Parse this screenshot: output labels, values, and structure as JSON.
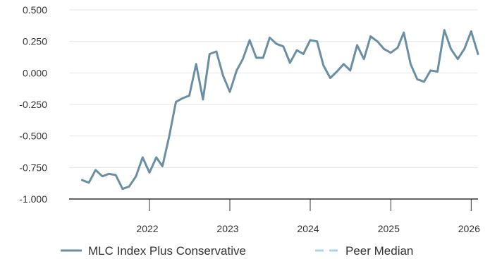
{
  "chart_data": {
    "type": "line",
    "title": "",
    "xlabel": "",
    "ylabel": "",
    "ylim": [
      -1.0,
      0.5
    ],
    "y_ticks": [
      "0.500",
      "0.250",
      "0.000",
      "-0.250",
      "-0.500",
      "-0.750",
      "-1.000"
    ],
    "x_ticks": [
      "2022",
      "2023",
      "2024",
      "2025",
      "2026"
    ],
    "grid": "horizontal",
    "legend_placement": "bottom",
    "series": [
      {
        "name": "MLC Index Plus Conservative",
        "color": "#6a8fa3",
        "style": "solid",
        "x": [
          "2021-03",
          "2021-04",
          "2021-05",
          "2021-06",
          "2021-07",
          "2021-08",
          "2021-09",
          "2021-10",
          "2021-11",
          "2021-12",
          "2022-01",
          "2022-02",
          "2022-03",
          "2022-04",
          "2022-05",
          "2022-06",
          "2022-07",
          "2022-08",
          "2022-09",
          "2022-10",
          "2022-11",
          "2022-12",
          "2023-01",
          "2023-02",
          "2023-03",
          "2023-04",
          "2023-05",
          "2023-06",
          "2023-07",
          "2023-08",
          "2023-09",
          "2023-10",
          "2023-11",
          "2023-12",
          "2024-01",
          "2024-02",
          "2024-03",
          "2024-04",
          "2024-05",
          "2024-06",
          "2024-07",
          "2024-08",
          "2024-09",
          "2024-10",
          "2024-11",
          "2024-12",
          "2025-01",
          "2025-02",
          "2025-03",
          "2025-04",
          "2025-05",
          "2025-06",
          "2025-07",
          "2025-08",
          "2025-09",
          "2025-10",
          "2025-11",
          "2025-12",
          "2026-01",
          "2026-02"
        ],
        "values": [
          -0.85,
          -0.87,
          -0.77,
          -0.82,
          -0.8,
          -0.81,
          -0.92,
          -0.9,
          -0.82,
          -0.67,
          -0.79,
          -0.67,
          -0.74,
          -0.5,
          -0.23,
          -0.2,
          -0.18,
          0.07,
          -0.21,
          0.15,
          0.17,
          -0.02,
          -0.15,
          0.02,
          0.11,
          0.26,
          0.12,
          0.12,
          0.28,
          0.23,
          0.21,
          0.08,
          0.18,
          0.15,
          0.26,
          0.25,
          0.06,
          -0.04,
          0.01,
          0.07,
          0.02,
          0.22,
          0.11,
          0.29,
          0.25,
          0.19,
          0.16,
          0.2,
          0.32,
          0.07,
          -0.05,
          -0.07,
          0.02,
          0.01,
          0.34,
          0.19,
          0.11,
          0.19,
          0.33,
          0.15
        ]
      },
      {
        "name": "Peer Median",
        "color": "#a9d4e9",
        "style": "dashed",
        "x": [],
        "values": []
      }
    ]
  }
}
